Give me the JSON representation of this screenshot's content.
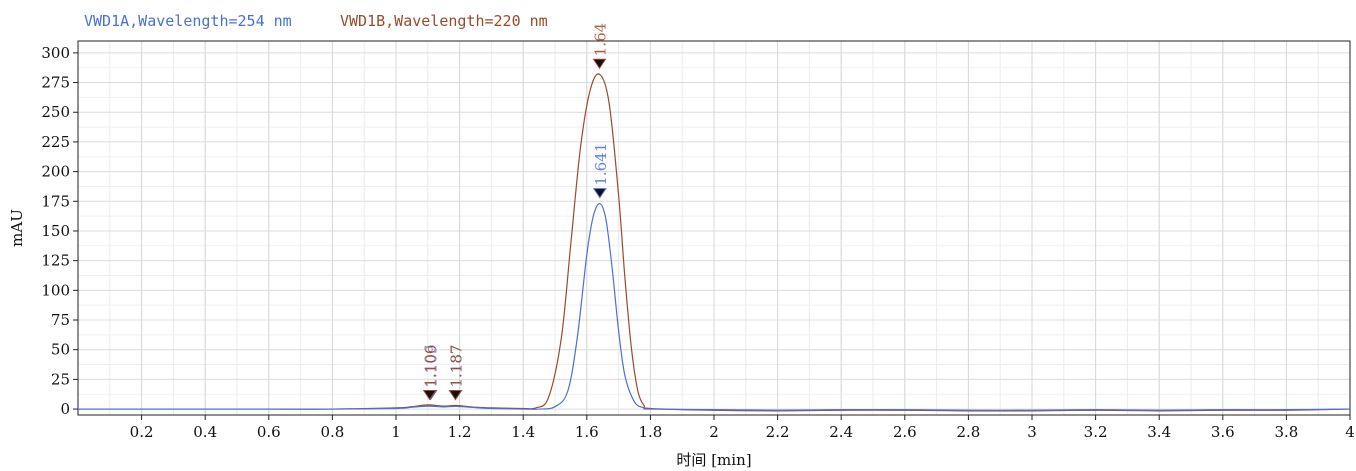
{
  "chart_data": {
    "type": "line",
    "title": "",
    "xlabel": "时间 [min]",
    "ylabel": "mAU",
    "xlim": [
      0,
      4.0
    ],
    "ylim": [
      -5,
      310
    ],
    "x_ticks": [
      0.2,
      0.4,
      0.6,
      0.8,
      1,
      1.2,
      1.4,
      1.6,
      1.8,
      2,
      2.2,
      2.4,
      2.6,
      2.8,
      3,
      3.2,
      3.4,
      3.6,
      3.8,
      4
    ],
    "x_tick_labels": [
      "0.2",
      "0.4",
      "0.6",
      "0.8",
      "1",
      "1.2",
      "1.4",
      "1.6",
      "1.8",
      "2",
      "2.2",
      "2.4",
      "2.6",
      "2.8",
      "3",
      "3.2",
      "3.4",
      "3.6",
      "3.8",
      "4"
    ],
    "y_ticks": [
      0,
      25,
      50,
      75,
      100,
      125,
      150,
      175,
      200,
      225,
      250,
      275,
      300
    ],
    "y_tick_labels": [
      "0",
      "25",
      "50",
      "75",
      "100",
      "125",
      "150",
      "175",
      "200",
      "225",
      "250",
      "275",
      "300"
    ],
    "grid": true,
    "legend_position": "top-left",
    "series": [
      {
        "name": "VWD1A, Wavelength=254 nm",
        "color": "#4a6fd8",
        "x": [
          0,
          0.2,
          0.4,
          0.6,
          0.8,
          1.0,
          1.05,
          1.1,
          1.15,
          1.19,
          1.25,
          1.3,
          1.4,
          1.45,
          1.5,
          1.54,
          1.57,
          1.6,
          1.62,
          1.641,
          1.66,
          1.68,
          1.7,
          1.72,
          1.75,
          1.78,
          1.8,
          2.0,
          2.2,
          2.4,
          2.6,
          2.8,
          3.0,
          3.2,
          3.4,
          3.6,
          3.8,
          4.0
        ],
        "y": [
          0,
          0,
          0,
          0,
          0,
          0.5,
          1.5,
          2.5,
          1.8,
          2.2,
          1.2,
          0.5,
          0,
          0,
          2,
          15,
          60,
          130,
          162,
          173,
          160,
          118,
          66,
          28,
          6,
          1,
          0,
          -0.5,
          -1,
          -0.5,
          -0.5,
          -1,
          -1,
          -0.5,
          -1,
          -0.5,
          -0.5,
          0
        ]
      },
      {
        "name": "VWD1B, Wavelength=220 nm",
        "color": "#9a4a2c",
        "x": [
          0,
          0.2,
          0.4,
          0.6,
          0.8,
          1.0,
          1.05,
          1.1,
          1.15,
          1.19,
          1.25,
          1.3,
          1.4,
          1.44,
          1.48,
          1.52,
          1.55,
          1.58,
          1.61,
          1.64,
          1.67,
          1.7,
          1.72,
          1.74,
          1.76,
          1.78,
          1.8,
          2.0,
          2.2,
          2.4,
          2.6,
          2.8,
          3.0,
          3.2,
          3.4,
          3.6,
          3.8,
          4.0
        ],
        "y": [
          0,
          0,
          0,
          0,
          0,
          1,
          2,
          3.5,
          2.5,
          3,
          1.5,
          1,
          0.5,
          1,
          10,
          60,
          140,
          220,
          268,
          282,
          258,
          180,
          110,
          52,
          16,
          3,
          0.5,
          -1,
          -1.5,
          -1,
          -1,
          -1.5,
          -1.5,
          -1,
          -1.5,
          -1,
          -1,
          0
        ]
      }
    ],
    "peak_annotations": [
      {
        "label": "1.641",
        "x": 1.641,
        "y": 173,
        "color": "#4a6fd8"
      },
      {
        "label": "1.64",
        "x": 1.64,
        "y": 282,
        "color": "#9a4a2c"
      },
      {
        "label": "1.109",
        "x": 1.109,
        "y": 3,
        "color": "#4a6fd8"
      },
      {
        "label": "1.106",
        "x": 1.106,
        "y": 3,
        "color": "#9a4a2c"
      },
      {
        "label": "1.187",
        "x": 1.187,
        "y": 3,
        "color": "#4a6fd8"
      },
      {
        "label": "1.187",
        "x": 1.187,
        "y": 3,
        "color": "#9a4a2c"
      }
    ],
    "legend": [
      {
        "text": "VWD1A,Wavelength=254 nm",
        "color": "#4a6fd8"
      },
      {
        "text": "VWD1B,Wavelength=220 nm",
        "color": "#9a4a2c"
      }
    ]
  }
}
